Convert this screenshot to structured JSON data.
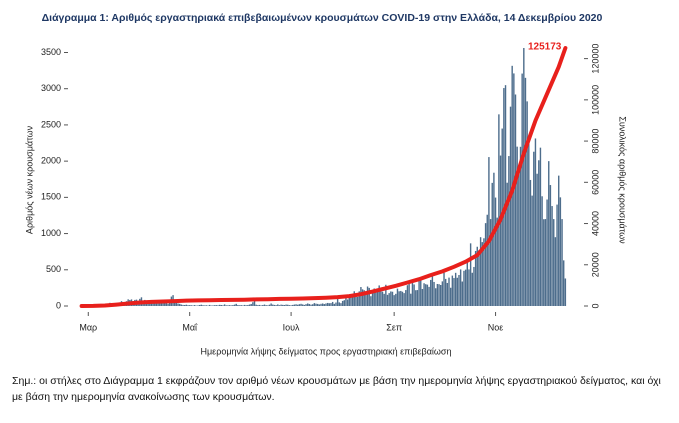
{
  "chart_data": {
    "type": "bar-line",
    "title": "Διάγραμμα 1: Αριθμός εργαστηριακά επιβεβαιωμένων κρουσμάτων COVID-19 στην Ελλάδα, 14 Δεκεμβρίου 2020",
    "xlabel": "Ημερομηνία λήψης δείγματος προς εργαστηριακή επιβεβαίωση",
    "ylabel": "Αριθμός νέων κρουσμάτων",
    "y2label": "Συνολικός αριθμός κρουσμάτων",
    "note": "Σημ.: οι στήλες στο Διάγραμμα 1 εκφράζουν τον αριθμό νέων κρουσμάτων με βάση την ημερομηνία λήψης εργαστηριακού δείγματος, και όχι με βάση την ημερομηνία ανακοίνωσης των κρουσμάτων.",
    "xlim": [
      50,
      358
    ],
    "xticks": [
      {
        "value": 61,
        "label": "Μαρ"
      },
      {
        "value": 122,
        "label": "Μαΐ"
      },
      {
        "value": 183,
        "label": "Ιουλ"
      },
      {
        "value": 245,
        "label": "Σεπ"
      },
      {
        "value": 306,
        "label": "Νοε"
      }
    ],
    "ylim": [
      0,
      3700
    ],
    "yticks": [
      0,
      500,
      1000,
      1500,
      2000,
      2500,
      3000,
      3500
    ],
    "y2lim": [
      0,
      130000
    ],
    "y2ticks": [
      0,
      20000,
      40000,
      60000,
      80000,
      100000,
      120000
    ],
    "series": [
      {
        "type": "bar",
        "color": "#4d6d8c",
        "x": [
          57,
          58,
          59,
          60,
          61,
          62,
          63,
          64,
          65,
          66,
          67,
          68,
          69,
          70,
          71,
          72,
          73,
          74,
          75,
          76,
          77,
          78,
          79,
          80,
          81,
          82,
          83,
          84,
          85,
          86,
          87,
          88,
          89,
          90,
          91,
          92,
          93,
          94,
          95,
          96,
          97,
          98,
          99,
          100,
          101,
          102,
          103,
          104,
          105,
          106,
          107,
          108,
          109,
          110,
          111,
          112,
          113,
          114,
          115,
          116,
          117,
          118,
          119,
          120,
          121,
          122,
          123,
          124,
          125,
          126,
          127,
          128,
          129,
          130,
          131,
          132,
          133,
          134,
          135,
          136,
          137,
          138,
          139,
          140,
          141,
          142,
          143,
          144,
          145,
          146,
          147,
          148,
          149,
          150,
          151,
          152,
          153,
          154,
          155,
          156,
          157,
          158,
          159,
          160,
          161,
          162,
          163,
          164,
          165,
          166,
          167,
          168,
          169,
          170,
          171,
          172,
          173,
          174,
          175,
          176,
          177,
          178,
          179,
          180,
          181,
          182,
          183,
          184,
          185,
          186,
          187,
          188,
          189,
          190,
          191,
          192,
          193,
          194,
          195,
          196,
          197,
          198,
          199,
          200,
          201,
          202,
          203,
          204,
          205,
          206,
          207,
          208,
          209,
          210,
          211,
          212,
          213,
          214,
          215,
          216,
          217,
          218,
          219,
          220,
          221,
          222,
          223,
          224,
          225,
          226,
          227,
          228,
          229,
          230,
          231,
          232,
          233,
          234,
          235,
          236,
          237,
          238,
          239,
          240,
          241,
          242,
          243,
          244,
          245,
          246,
          247,
          248,
          249,
          250,
          251,
          252,
          253,
          254,
          255,
          256,
          257,
          258,
          259,
          260,
          261,
          262,
          263,
          264,
          265,
          266,
          267,
          268,
          269,
          270,
          271,
          272,
          273,
          274,
          275,
          276,
          277,
          278,
          279,
          280,
          281,
          282,
          283,
          284,
          285,
          286,
          287,
          288,
          289,
          290,
          291,
          292,
          293,
          294,
          295,
          296,
          297,
          298,
          299,
          300,
          301,
          302,
          303,
          304,
          305,
          306,
          307,
          308,
          309,
          310,
          311,
          312,
          313,
          314,
          315,
          316,
          317,
          318,
          319,
          320,
          321,
          322,
          323,
          324,
          325,
          326,
          327,
          328,
          329,
          330,
          331,
          332,
          333,
          334,
          335,
          336,
          337,
          338,
          339,
          340,
          341,
          342,
          343,
          344,
          345,
          346,
          347,
          348
        ],
        "values": [
          1,
          1,
          1,
          1,
          2,
          0,
          3,
          3,
          7,
          13,
          11,
          18,
          7,
          21,
          24,
          31,
          28,
          44,
          38,
          41,
          29,
          42,
          46,
          49,
          67,
          52,
          51,
          66,
          92,
          83,
          91,
          69,
          84,
          88,
          60,
          99,
          120,
          64,
          84,
          62,
          56,
          59,
          45,
          74,
          55,
          60,
          52,
          40,
          46,
          45,
          42,
          61,
          31,
          60,
          130,
          150,
          60,
          48,
          35,
          30,
          20,
          15,
          14,
          18,
          12,
          12,
          10,
          8,
          13,
          5,
          9,
          14,
          18,
          12,
          8,
          10,
          7,
          15,
          6,
          9,
          11,
          12,
          10,
          16,
          14,
          10,
          22,
          9,
          10,
          12,
          8,
          13,
          19,
          30,
          14,
          10,
          12,
          8,
          15,
          10,
          14,
          20,
          28,
          52,
          97,
          18,
          12,
          15,
          8,
          14,
          20,
          12,
          9,
          18,
          35,
          20,
          15,
          12,
          22,
          11,
          19,
          16,
          14,
          20,
          18,
          12,
          10,
          15,
          20,
          24,
          18,
          25,
          30,
          22,
          15,
          26,
          35,
          28,
          19,
          24,
          40,
          32,
          29,
          22,
          30,
          35,
          27,
          35,
          42,
          38,
          40,
          56,
          30,
          48,
          110,
          50,
          39,
          70,
          80,
          110,
          90,
          121,
          150,
          160,
          203,
          151,
          126,
          202,
          262,
          230,
          217,
          185,
          269,
          250,
          135,
          181,
          242,
          195,
          210,
          284,
          203,
          198,
          168,
          293,
          154,
          178,
          201,
          197,
          150,
          168,
          240,
          203,
          208,
          197,
          178,
          220,
          287,
          310,
          170,
          330,
          298,
          218,
          220,
          345,
          372,
          235,
          314,
          301,
          295,
          264,
          360,
          418,
          332,
          245,
          304,
          301,
          290,
          340,
          460,
          374,
          318,
          392,
          252,
          420,
          386,
          458,
          390,
          428,
          505,
          338,
          486,
          502,
          601,
          505,
          865,
          459,
          539,
          760,
          818,
          770,
          950,
          882,
          935,
          1144,
          1260,
          2056,
          1200,
          1700,
          1840,
          1497,
          1220,
          2646,
          2077,
          2450,
          3009,
          3049,
          1702,
          2070,
          2752,
          3316,
          3211,
          2920,
          2200,
          1913,
          2198,
          3209,
          3562,
          3150,
          2825,
          2331,
          1740,
          1524,
          2130,
          2313,
          1826,
          2012,
          2186,
          1515,
          1198,
          1200,
          1470,
          2000,
          1670,
          1380,
          1200,
          950,
          1400,
          1800,
          1500,
          1200,
          630,
          380
        ]
      },
      {
        "type": "line",
        "axis": "y2",
        "color": "#e8201c",
        "x": [
          57,
          64,
          71,
          78,
          85,
          92,
          99,
          106,
          113,
          120,
          127,
          134,
          141,
          148,
          155,
          162,
          169,
          176,
          183,
          190,
          197,
          204,
          211,
          218,
          225,
          232,
          239,
          246,
          253,
          260,
          267,
          274,
          281,
          288,
          295,
          302,
          309,
          316,
          323,
          330,
          337,
          344,
          348
        ],
        "values": [
          3,
          50,
          230,
          700,
          1200,
          1700,
          2000,
          2200,
          2400,
          2600,
          2700,
          2800,
          2900,
          2950,
          3050,
          3200,
          3300,
          3450,
          3500,
          3650,
          3850,
          4050,
          4300,
          4800,
          5700,
          7000,
          8400,
          9800,
          11400,
          13000,
          15000,
          16800,
          19000,
          21500,
          24700,
          31500,
          42000,
          56000,
          74000,
          90000,
          103000,
          116000,
          125173
        ]
      }
    ]
  }
}
